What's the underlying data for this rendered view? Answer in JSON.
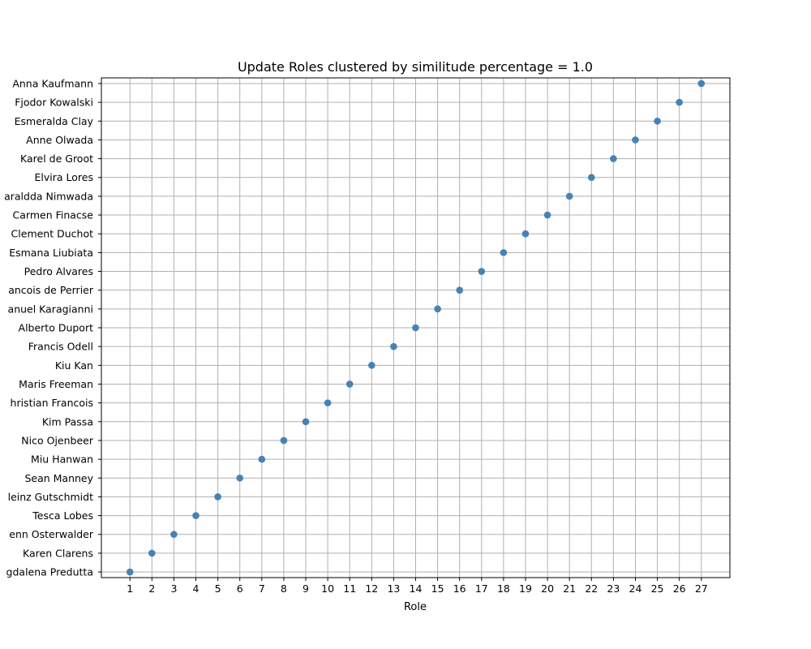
{
  "chart_data": {
    "type": "scatter",
    "title": "Update Roles clustered by similitude percentage = 1.0",
    "xlabel": "Role",
    "ylabel": "",
    "x_ticks": [
      1,
      2,
      3,
      4,
      5,
      6,
      7,
      8,
      9,
      10,
      11,
      12,
      13,
      14,
      15,
      16,
      17,
      18,
      19,
      20,
      21,
      22,
      23,
      24,
      25,
      26,
      27
    ],
    "x_range": [
      -0.3,
      28.3
    ],
    "y_categories": [
      "gdalena Predutta",
      "Karen Clarens",
      "enn Osterwalder",
      "Tesca Lobes",
      "leinz Gutschmidt",
      "Sean Manney",
      "Miu Hanwan",
      "Nico Ojenbeer",
      "Kim Passa",
      "hristian Francois",
      "Maris Freeman",
      "Kiu Kan",
      "Francis Odell",
      "Alberto Duport",
      "anuel Karagianni",
      "ancois de Perrier",
      "Pedro Alvares",
      "Esmana Liubiata",
      "Clement Duchot",
      "Carmen Finacse",
      "araldda Nimwada",
      "Elvira Lores",
      "Karel de Groot",
      "Anne Olwada",
      "Esmeralda Clay",
      "Fjodor Kowalski",
      "Anna Kaufmann"
    ],
    "points": [
      {
        "x": 1,
        "y": "gdalena Predutta"
      },
      {
        "x": 2,
        "y": "Karen Clarens"
      },
      {
        "x": 3,
        "y": "enn Osterwalder"
      },
      {
        "x": 4,
        "y": "Tesca Lobes"
      },
      {
        "x": 5,
        "y": "leinz Gutschmidt"
      },
      {
        "x": 6,
        "y": "Sean Manney"
      },
      {
        "x": 7,
        "y": "Miu Hanwan"
      },
      {
        "x": 8,
        "y": "Nico Ojenbeer"
      },
      {
        "x": 9,
        "y": "Kim Passa"
      },
      {
        "x": 10,
        "y": "hristian Francois"
      },
      {
        "x": 11,
        "y": "Maris Freeman"
      },
      {
        "x": 12,
        "y": "Kiu Kan"
      },
      {
        "x": 13,
        "y": "Francis Odell"
      },
      {
        "x": 14,
        "y": "Alberto Duport"
      },
      {
        "x": 15,
        "y": "anuel Karagianni"
      },
      {
        "x": 16,
        "y": "ancois de Perrier"
      },
      {
        "x": 17,
        "y": "Pedro Alvares"
      },
      {
        "x": 18,
        "y": "Esmana Liubiata"
      },
      {
        "x": 19,
        "y": "Clement Duchot"
      },
      {
        "x": 20,
        "y": "Carmen Finacse"
      },
      {
        "x": 21,
        "y": "araldda Nimwada"
      },
      {
        "x": 22,
        "y": "Elvira Lores"
      },
      {
        "x": 23,
        "y": "Karel de Groot"
      },
      {
        "x": 24,
        "y": "Anne Olwada"
      },
      {
        "x": 25,
        "y": "Esmeralda Clay"
      },
      {
        "x": 26,
        "y": "Fjodor Kowalski"
      },
      {
        "x": 27,
        "y": "Anna Kaufmann"
      }
    ],
    "grid": true,
    "legend": "none",
    "marker_color": "#4682b4",
    "grid_color": "#b0b0b0"
  }
}
